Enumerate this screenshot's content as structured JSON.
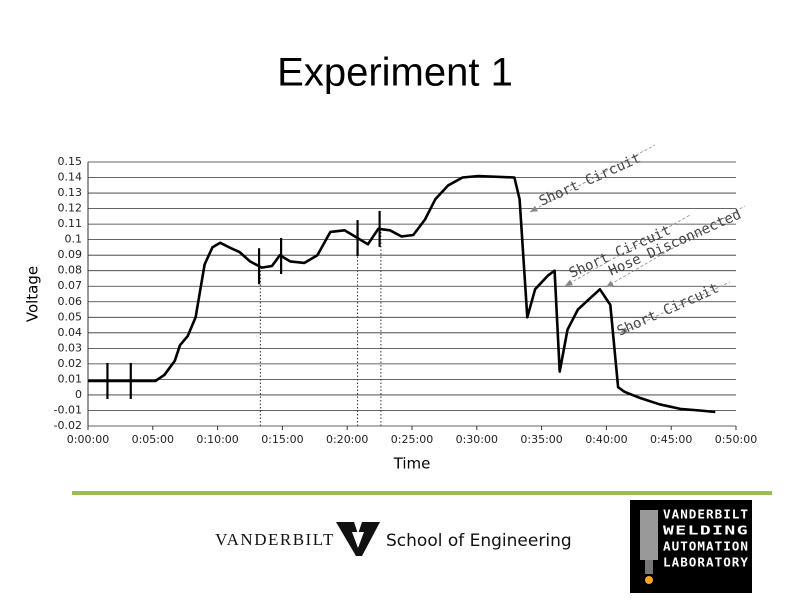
{
  "chart_data": {
    "type": "line",
    "title": "Experiment 1",
    "x_label": "Time",
    "y_label": "Voltage",
    "xlim": [
      0,
      50
    ],
    "xticks": [
      {
        "value": 0,
        "label": "0:00:00"
      },
      {
        "value": 5,
        "label": "0:05:00"
      },
      {
        "value": 10,
        "label": "0:10:00"
      },
      {
        "value": 15,
        "label": "0:15:00"
      },
      {
        "value": 20,
        "label": "0:20:00"
      },
      {
        "value": 25,
        "label": "0:25:00"
      },
      {
        "value": 30,
        "label": "0:30:00"
      },
      {
        "value": 35,
        "label": "0:35:00"
      },
      {
        "value": 40,
        "label": "0:40:00"
      },
      {
        "value": 45,
        "label": "0:45:00"
      },
      {
        "value": 50,
        "label": "0:50:00"
      }
    ],
    "ylim": [
      -0.02,
      0.15
    ],
    "yticks": [
      -0.02,
      -0.01,
      0,
      0.01,
      0.02,
      0.03,
      0.04,
      0.05,
      0.06,
      0.07,
      0.08,
      0.09,
      0.1,
      0.11,
      0.12,
      0.13,
      0.14,
      0.15
    ],
    "grid": true,
    "x": [
      0,
      5.2,
      5.9,
      6.7,
      7.1,
      7.7,
      8.3,
      9.0,
      9.6,
      10.2,
      10.9,
      11.7,
      12.5,
      13.4,
      14.2,
      14.8,
      15.6,
      16.7,
      17.7,
      18.7,
      19.8,
      20.6,
      21.6,
      22.4,
      23.3,
      24.2,
      25.1,
      26.0,
      26.8,
      27.8,
      28.9,
      30.1,
      32.9,
      33.3,
      33.9,
      34.5,
      35.5,
      36.0,
      36.4,
      37.0,
      37.8,
      38.7,
      39.5,
      40.3,
      40.9,
      41.4,
      42.6,
      44.1,
      45.7,
      47.2,
      48.4
    ],
    "series": [
      {
        "color": "#000000",
        "values": [
          0.009,
          0.009,
          0.013,
          0.022,
          0.032,
          0.038,
          0.05,
          0.084,
          0.095,
          0.098,
          0.095,
          0.092,
          0.086,
          0.082,
          0.083,
          0.09,
          0.086,
          0.085,
          0.09,
          0.105,
          0.106,
          0.102,
          0.097,
          0.107,
          0.106,
          0.102,
          0.103,
          0.113,
          0.126,
          0.135,
          0.14,
          0.141,
          0.14,
          0.126,
          0.05,
          0.068,
          0.077,
          0.08,
          0.015,
          0.042,
          0.055,
          0.062,
          0.068,
          0.058,
          0.005,
          0.002,
          -0.002,
          -0.006,
          -0.009,
          -0.01,
          -0.011
        ]
      }
    ],
    "event_markers": [
      1.5,
      3.3,
      13.2,
      14.9,
      20.8,
      22.5
    ],
    "dotted_lines": [
      13.3,
      20.8,
      22.6
    ],
    "annotations": [
      "Short Circuit",
      "Short Circuit",
      "Hose Disconnected",
      "Short Circuit"
    ]
  },
  "footer": {
    "university": "VANDERBILT",
    "school": "School of Engineering",
    "lab_logo": [
      "VANDERBILT",
      "WELDING",
      "AUTOMATION",
      "LABORATORY"
    ]
  }
}
